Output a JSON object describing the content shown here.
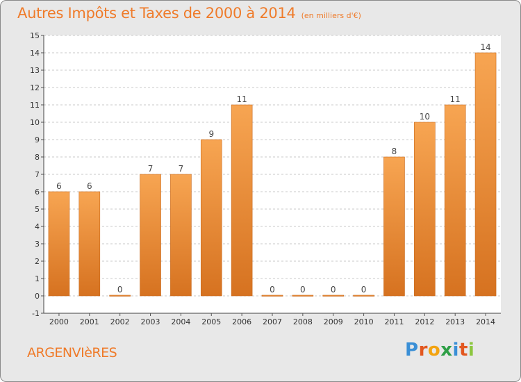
{
  "title": "Autres Impôts et Taxes de 2000 à 2014",
  "subtitle": "(en milliers d'€)",
  "commune": "ARGENVIèRES",
  "brand": {
    "letters": [
      "P",
      "r",
      "o",
      "x",
      "i",
      "t",
      "i"
    ],
    "colors": [
      "#3a8fd6",
      "#e2571f",
      "#f3a30f",
      "#2e9f46",
      "#3a8fd6",
      "#e2571f",
      "#8cc63f"
    ]
  },
  "colors": {
    "accent": "#ef7b2a",
    "bar_light": "#f7a552",
    "bar_dark": "#d67220",
    "grid": "#c9c9c9",
    "plot_bg": "#ffffff"
  },
  "chart_data": {
    "type": "bar",
    "categories": [
      "2000",
      "2001",
      "2002",
      "2003",
      "2004",
      "2005",
      "2006",
      "2007",
      "2008",
      "2009",
      "2010",
      "2011",
      "2012",
      "2013",
      "2014"
    ],
    "values": [
      6,
      6,
      0,
      7,
      7,
      9,
      11,
      0,
      0,
      0,
      0,
      8,
      10,
      11,
      14
    ],
    "labels": [
      "6",
      "6",
      "0",
      "7",
      "7",
      "9",
      "11",
      "0",
      "0",
      "0",
      "0",
      "8",
      "10",
      "11",
      "14"
    ],
    "yticks": [
      -1,
      0,
      1,
      2,
      3,
      4,
      5,
      6,
      7,
      8,
      9,
      10,
      11,
      12,
      13,
      14,
      15
    ],
    "ylim": [
      -1,
      15
    ],
    "grid": true,
    "legend": "none"
  }
}
